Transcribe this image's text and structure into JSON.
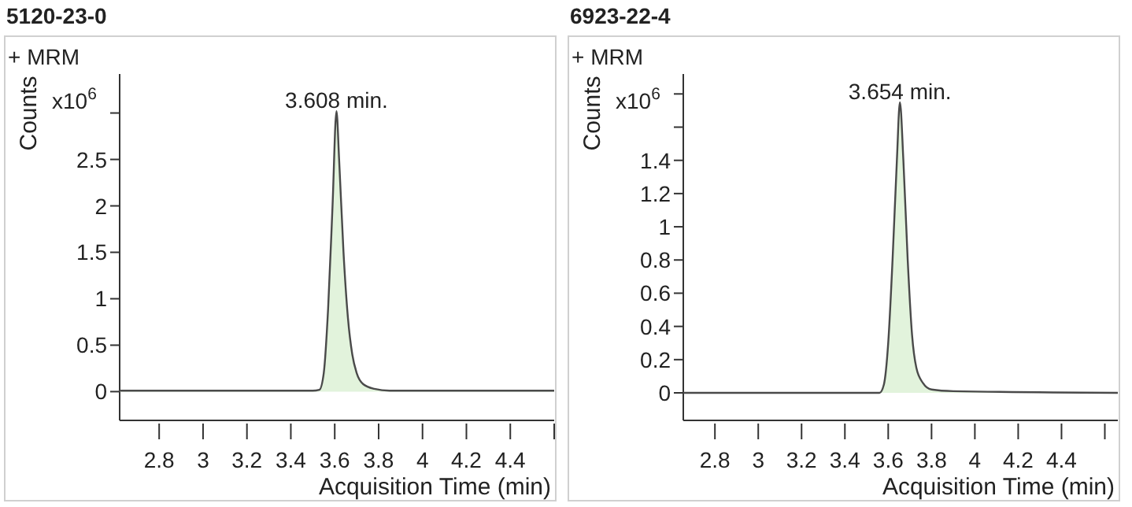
{
  "chart_data": [
    {
      "type": "area",
      "title": "5120-23-0",
      "ylabel": "Counts",
      "xlabel": "Acquisition Time (min)",
      "annotations": [
        "+ MRM",
        "x10$^{6}$",
        {
          "text": "3.608 min.",
          "x": 3.608,
          "y": 3.02
        }
      ],
      "xlim": [
        2.62,
        4.6
      ],
      "xticks": [
        2.8,
        3,
        3.2,
        3.4,
        3.6,
        3.8,
        4,
        4.2,
        4.4,
        {
          "value": 4.6,
          "label": null
        }
      ],
      "ylim": [
        -0.31,
        3.42
      ],
      "yticks": [
        0,
        0.5,
        1,
        1.5,
        2,
        2.5,
        {
          "value": 3,
          "label": null
        }
      ],
      "series": [
        {
          "color": "#e2f3dc",
          "x": [
            2.62,
            3.5,
            3.53,
            3.55,
            3.57,
            3.59,
            3.608,
            3.62,
            3.64,
            3.66,
            3.68,
            3.7,
            3.73,
            3.78,
            3.85,
            4.6
          ],
          "values": [
            0.01,
            0.01,
            0.02,
            0.2,
            0.9,
            2.0,
            3.02,
            2.5,
            1.5,
            0.8,
            0.4,
            0.2,
            0.08,
            0.03,
            0.01,
            0.01
          ]
        }
      ]
    },
    {
      "type": "area",
      "title": "6923-22-4",
      "ylabel": "Counts",
      "xlabel": "Acquisition Time (min)",
      "annotations": [
        "+ MRM",
        "x10$^{6}$",
        {
          "text": "3.654 min.",
          "x": 3.654,
          "y": 1.75
        }
      ],
      "xlim": [
        2.654,
        4.66
      ],
      "xticks": [
        2.8,
        3,
        3.2,
        3.4,
        3.6,
        3.8,
        4,
        4.2,
        4.4,
        {
          "value": 4.6,
          "label": null
        }
      ],
      "ylim": [
        -0.166,
        1.92
      ],
      "yticks": [
        0,
        0.2,
        0.4,
        0.6,
        0.8,
        1,
        1.2,
        1.4,
        {
          "value": 1.6,
          "label": null
        },
        {
          "value": 1.8,
          "label": null
        }
      ],
      "series": [
        {
          "color": "#e2f3dc",
          "x": [
            2.654,
            3.56,
            3.58,
            3.6,
            3.62,
            3.64,
            3.654,
            3.67,
            3.69,
            3.71,
            3.73,
            3.76,
            3.8,
            3.9,
            4.66
          ],
          "values": [
            0,
            0,
            0.05,
            0.3,
            0.8,
            1.4,
            1.75,
            1.4,
            0.8,
            0.35,
            0.15,
            0.06,
            0.02,
            0.01,
            0
          ]
        }
      ]
    }
  ]
}
